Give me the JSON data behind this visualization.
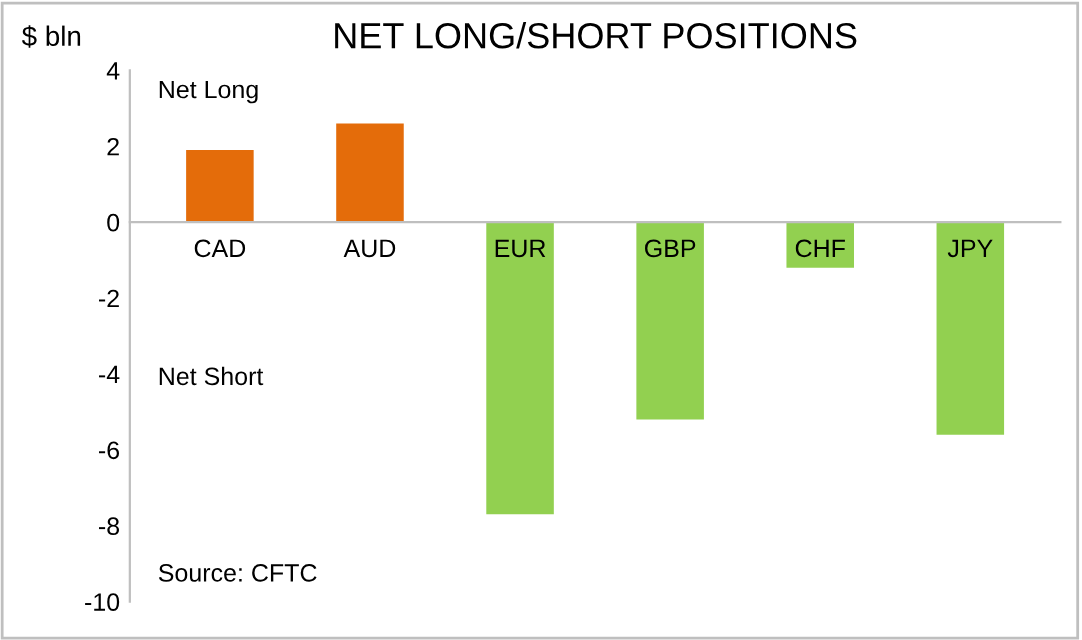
{
  "chart_data": {
    "type": "bar",
    "title": "NET LONG/SHORT POSITIONS",
    "ylabel": "$ bln",
    "categories": [
      "CAD",
      "AUD",
      "EUR",
      "GBP",
      "CHF",
      "JPY"
    ],
    "values": [
      1.9,
      2.6,
      -7.7,
      -5.2,
      -1.2,
      -5.6
    ],
    "colors": [
      "#e46c0a",
      "#e46c0a",
      "#92d050",
      "#92d050",
      "#92d050",
      "#92d050"
    ],
    "ylim": [
      -10,
      4
    ],
    "yticks": [
      -10,
      -8,
      -6,
      -4,
      -2,
      0,
      2,
      4
    ],
    "annotations": [
      "Net Long",
      "Net Short",
      "Source: CFTC"
    ],
    "grid": false,
    "legend": false
  }
}
